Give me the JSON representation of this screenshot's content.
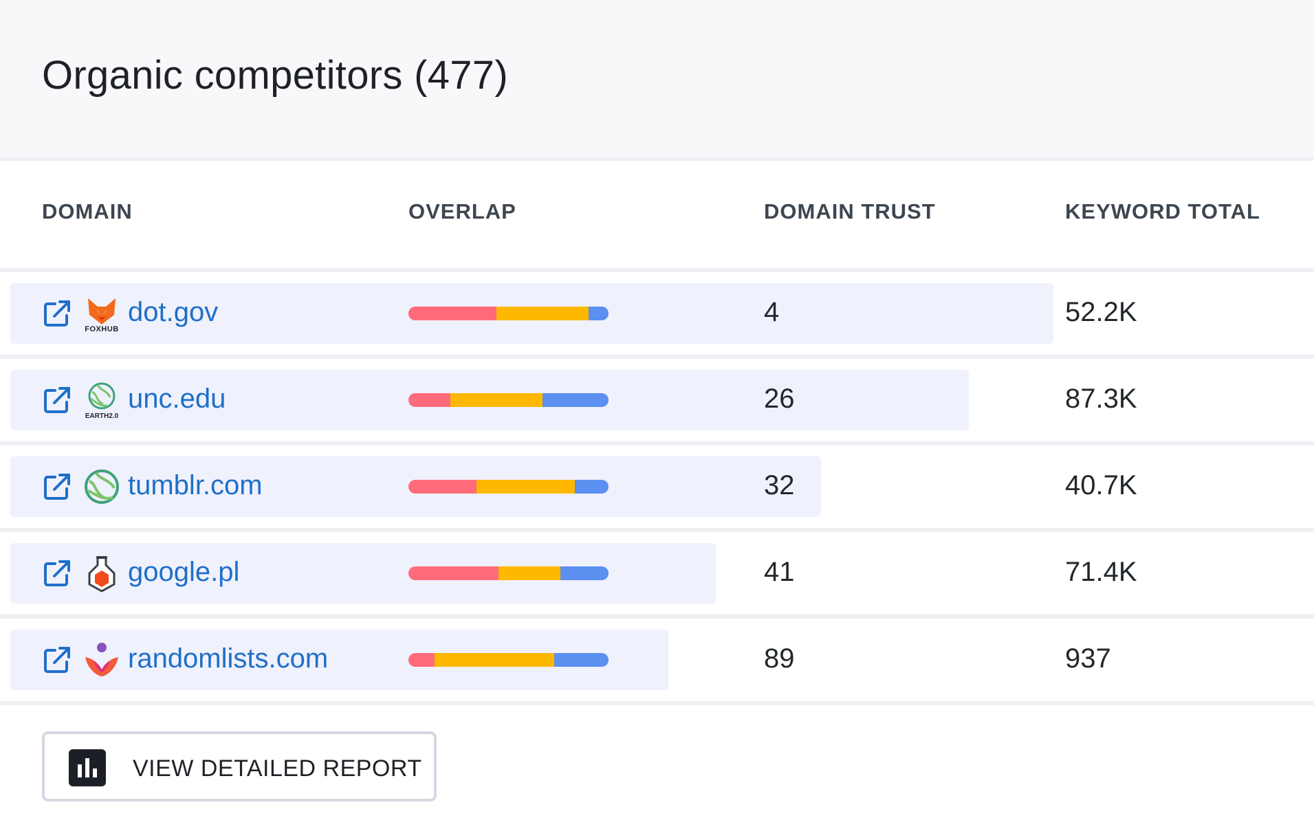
{
  "header": {
    "title": "Organic competitors (477)"
  },
  "columns": {
    "domain": "DOMAIN",
    "overlap": "OVERLAP",
    "domain_trust": "DOMAIN TRUST",
    "keyword_total": "KEYWORD TOTAL"
  },
  "colors": {
    "link": "#1f6fc9",
    "overlap_red": "#ff6b7a",
    "overlap_yellow": "#ffb800",
    "overlap_blue": "#5b8ff0",
    "row_highlight": "#eff1fd"
  },
  "rows": [
    {
      "domain": "dot.gov",
      "logo": "foxhub-logo",
      "logo_text": "FOXHUB",
      "domain_trust": "4",
      "keyword_total": "52.2K",
      "overlap": [
        0.44,
        0.46,
        0.1
      ],
      "highlight": 0.8
    },
    {
      "domain": "unc.edu",
      "logo": "earth-logo",
      "logo_text": "EARTH2.0",
      "domain_trust": "26",
      "keyword_total": "87.3K",
      "overlap": [
        0.21,
        0.46,
        0.33
      ],
      "highlight": 0.735
    },
    {
      "domain": "tumblr.com",
      "logo": "globe-logo",
      "logo_text": "",
      "domain_trust": "32",
      "keyword_total": "40.7K",
      "overlap": [
        0.34,
        0.49,
        0.17
      ],
      "highlight": 0.622
    },
    {
      "domain": "google.pl",
      "logo": "flask-logo",
      "logo_text": "",
      "domain_trust": "41",
      "keyword_total": "71.4K",
      "overlap": [
        0.45,
        0.31,
        0.24
      ],
      "highlight": 0.541
    },
    {
      "domain": "randomlists.com",
      "logo": "lotus-logo",
      "logo_text": "",
      "domain_trust": "89",
      "keyword_total": "937",
      "overlap": [
        0.13,
        0.6,
        0.27
      ],
      "highlight": 0.505
    }
  ],
  "report_button": {
    "label": "VIEW DETAILED REPORT",
    "icon": "bar-chart-icon"
  }
}
